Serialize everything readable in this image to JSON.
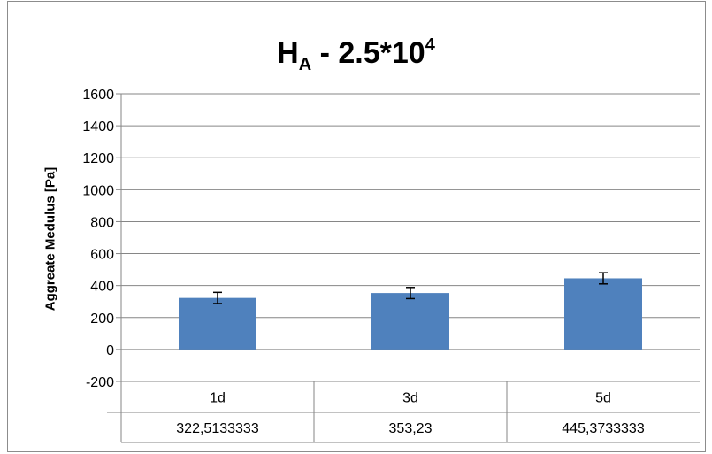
{
  "chart_data": {
    "type": "bar",
    "title_main": "H",
    "title_sub": "A",
    "title_rest": " - 2.5*10",
    "title_sup": "4",
    "ylabel": "Aggreate Medulus  [Pa]",
    "categories": [
      "1d",
      "3d",
      "5d"
    ],
    "values": [
      322.5133333,
      353.23,
      445.3733333
    ],
    "value_labels": [
      "322,5133333",
      "353,23",
      "445,3733333"
    ],
    "error_bars": [
      35,
      35,
      35
    ],
    "ylim": [
      -200,
      1600
    ],
    "yticks": [
      "1600",
      "1400",
      "1200",
      "1000",
      "800",
      "600",
      "400",
      "200",
      "0",
      "-200"
    ],
    "ytick_values": [
      1600,
      1400,
      1200,
      1000,
      800,
      600,
      400,
      200,
      0,
      -200
    ],
    "grid": true,
    "bar_color": "#4f81bd",
    "grid_color": "#868686"
  }
}
